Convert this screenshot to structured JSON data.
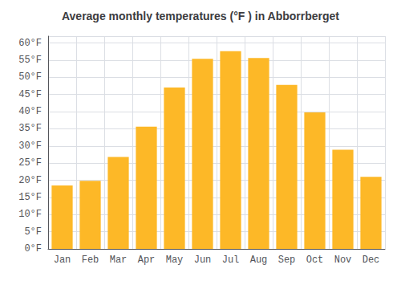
{
  "chart_data": {
    "type": "bar",
    "title": "Average monthly temperatures (°F ) in Abborrberget",
    "categories": [
      "Jan",
      "Feb",
      "Mar",
      "Apr",
      "May",
      "Jun",
      "Jul",
      "Aug",
      "Sep",
      "Oct",
      "Nov",
      "Dec"
    ],
    "values": [
      18.5,
      19.8,
      26.8,
      35.6,
      47.0,
      55.4,
      57.6,
      55.6,
      47.8,
      39.8,
      28.9,
      21.0
    ],
    "color": "#FDB827",
    "ylim": [
      0,
      62
    ],
    "yticks": [
      {
        "value": 0,
        "label": "0°F"
      },
      {
        "value": 5,
        "label": "5°F"
      },
      {
        "value": 10,
        "label": "10°F"
      },
      {
        "value": 15,
        "label": "15°F"
      },
      {
        "value": 20,
        "label": "20°F"
      },
      {
        "value": 25,
        "label": "25°F"
      },
      {
        "value": 30,
        "label": "30°F"
      },
      {
        "value": 35,
        "label": "35°F"
      },
      {
        "value": 40,
        "label": "40°F"
      },
      {
        "value": 45,
        "label": "45°F"
      },
      {
        "value": 50,
        "label": "50°F"
      },
      {
        "value": 55,
        "label": "55°F"
      },
      {
        "value": 60,
        "label": "60°F"
      }
    ],
    "grid": true
  }
}
